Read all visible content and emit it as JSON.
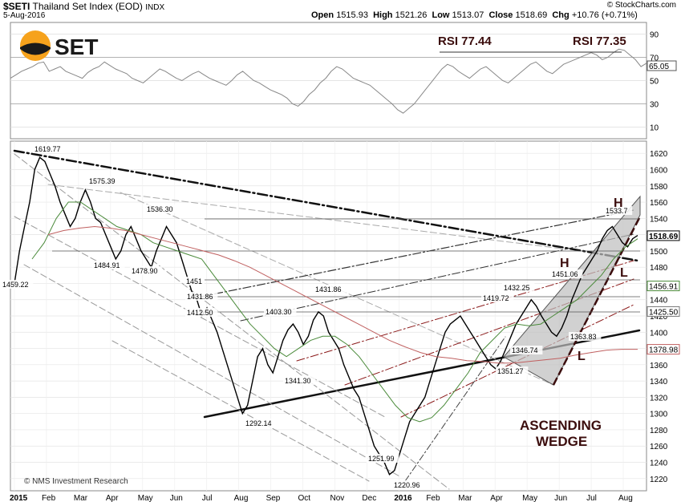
{
  "header": {
    "symbol": "$SETI",
    "name": "Thailand Set Index (EOD)",
    "exchange": "INDX",
    "date": "5-Aug-2016",
    "credit": "© StockCharts.com",
    "open_label": "Open",
    "open": "1515.93",
    "high_label": "High",
    "high": "1521.26",
    "low_label": "Low",
    "low": "1513.07",
    "close_label": "Close",
    "close": "1518.69",
    "chg_label": "Chg",
    "chg": "+10.76 (+0.71%)"
  },
  "logo": {
    "text": "SET"
  },
  "footer": {
    "credit": "© NMS Investment Research"
  },
  "chart_data": [
    {
      "type": "line",
      "panel": "RSI",
      "yticks": [
        10,
        30,
        50,
        70,
        90
      ],
      "ylim": [
        0,
        100
      ],
      "last_value_label": "65.05",
      "annotations": [
        "RSI 77.44",
        "RSI 77.35"
      ],
      "series": [
        {
          "values": [
            52,
            55,
            58,
            60,
            62,
            65,
            66,
            58,
            60,
            62,
            58,
            56,
            54,
            52,
            57,
            60,
            62,
            66,
            63,
            60,
            58,
            56,
            52,
            50,
            48,
            52,
            56,
            60,
            58,
            55,
            52,
            50,
            53,
            56,
            58,
            55,
            52,
            50,
            48,
            46,
            50,
            55,
            58,
            54,
            50,
            48,
            45,
            42,
            40,
            38,
            35,
            30,
            28,
            32,
            38,
            42,
            48,
            52,
            58,
            62,
            60,
            56,
            52,
            50,
            48,
            46,
            42,
            38,
            34,
            30,
            25,
            22,
            26,
            30,
            36,
            42,
            48,
            54,
            60,
            64,
            62,
            58,
            55,
            52,
            56,
            60,
            62,
            58,
            54,
            50,
            48,
            52,
            56,
            60,
            64,
            66,
            62,
            58,
            56,
            60,
            64,
            66,
            68,
            70,
            72,
            74,
            72,
            68,
            70,
            74,
            77,
            76,
            72,
            68,
            62,
            65
          ]
        }
      ]
    },
    {
      "type": "line",
      "panel": "price",
      "title": "Thailand Set Index (EOD)",
      "x_ticks": [
        "2015",
        "Feb",
        "Mar",
        "Apr",
        "May",
        "Jun",
        "Jul",
        "Aug",
        "Sep",
        "Oct",
        "Nov",
        "Dec",
        "2016",
        "Feb",
        "Mar",
        "Apr",
        "May",
        "Jun",
        "Jul",
        "Aug"
      ],
      "y_ticks": [
        1220,
        1240,
        1260,
        1280,
        1300,
        1320,
        1340,
        1360,
        1380,
        1400,
        1420,
        1440,
        1460,
        1480,
        1500,
        1520,
        1540,
        1560,
        1580,
        1600,
        1620
      ],
      "ylim": [
        1205,
        1635
      ],
      "price_labels": [
        "1619.77",
        "1575.39",
        "1536.30",
        "1484.91",
        "1478.90",
        "1459.22",
        "1451",
        "1431.86",
        "1412.50",
        "1431.86",
        "1403.30",
        "1341.30",
        "1292.14",
        "1251.99",
        "1220.96",
        "1351.27",
        "1419.72",
        "1432.25",
        "1451.06",
        "1346.74",
        "1363.83",
        "1533.7"
      ],
      "last_value_labels": [
        "1518.69",
        "1456.91",
        "1425.50",
        "1378.98"
      ],
      "pattern_labels": [
        "H",
        "H",
        "L",
        "L"
      ],
      "pattern_name": "ASCENDING WEDGE",
      "series": [
        {
          "name": "price",
          "values": [
            1460,
            1500,
            1530,
            1560,
            1600,
            1615,
            1610,
            1595,
            1580,
            1560,
            1545,
            1530,
            1540,
            1560,
            1575,
            1560,
            1540,
            1535,
            1520,
            1505,
            1490,
            1500,
            1520,
            1530,
            1515,
            1500,
            1490,
            1480,
            1500,
            1515,
            1530,
            1520,
            1510,
            1490,
            1470,
            1450,
            1440,
            1420,
            1430,
            1415,
            1400,
            1380,
            1360,
            1340,
            1320,
            1300,
            1310,
            1340,
            1370,
            1380,
            1360,
            1350,
            1370,
            1390,
            1403,
            1410,
            1400,
            1385,
            1395,
            1415,
            1425,
            1420,
            1400,
            1390,
            1380,
            1360,
            1345,
            1330,
            1320,
            1300,
            1280,
            1260,
            1250,
            1240,
            1225,
            1230,
            1250,
            1270,
            1290,
            1300,
            1310,
            1320,
            1340,
            1360,
            1380,
            1400,
            1410,
            1415,
            1420,
            1410,
            1400,
            1390,
            1380,
            1370,
            1360,
            1355,
            1365,
            1380,
            1395,
            1410,
            1420,
            1430,
            1440,
            1432,
            1420,
            1410,
            1400,
            1395,
            1405,
            1420,
            1440,
            1455,
            1470,
            1480,
            1490,
            1500,
            1515,
            1525,
            1530,
            1520,
            1510,
            1505,
            1515,
            1519
          ]
        },
        {
          "name": "ma50",
          "values": [
            1490,
            1510,
            1540,
            1560,
            1560,
            1550,
            1540,
            1530,
            1525,
            1520,
            1510,
            1505,
            1500,
            1495,
            1490,
            1470,
            1450,
            1430,
            1410,
            1395,
            1380,
            1370,
            1380,
            1390,
            1395,
            1395,
            1385,
            1370,
            1350,
            1330,
            1310,
            1295,
            1290,
            1295,
            1310,
            1330,
            1350,
            1375,
            1390,
            1405,
            1410,
            1408,
            1410,
            1420,
            1430,
            1440,
            1455,
            1470,
            1490,
            1505,
            1515
          ]
        },
        {
          "name": "ma200",
          "values": [
            1520,
            1525,
            1528,
            1530,
            1528,
            1525,
            1520,
            1515,
            1510,
            1505,
            1500,
            1495,
            1488,
            1480,
            1470,
            1460,
            1450,
            1440,
            1430,
            1420,
            1410,
            1400,
            1390,
            1382,
            1375,
            1370,
            1368,
            1365,
            1364,
            1362,
            1362,
            1364,
            1366,
            1368,
            1372,
            1375,
            1378,
            1379,
            1379
          ]
        }
      ]
    }
  ]
}
